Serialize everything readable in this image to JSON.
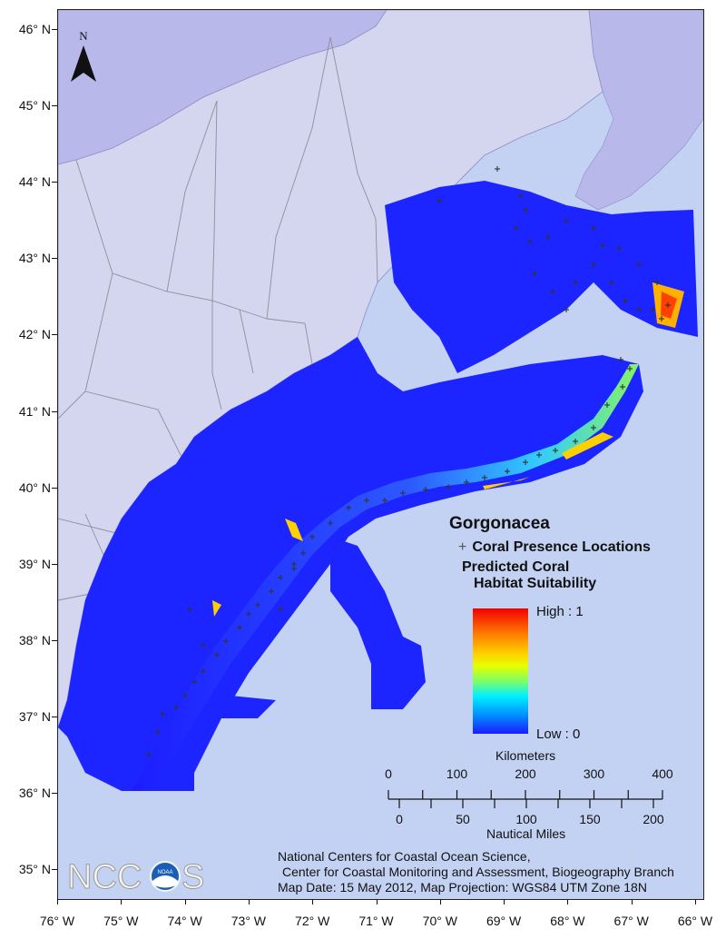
{
  "map": {
    "latitude_labels": [
      "46° N",
      "45° N",
      "44° N",
      "43° N",
      "42° N",
      "41° N",
      "40° N",
      "39° N",
      "38° N",
      "37° N",
      "36° N",
      "35° N"
    ],
    "longitude_labels": [
      "76° W",
      "75° W",
      "74° W",
      "73° W",
      "72° W",
      "71° W",
      "70° W",
      "69° W",
      "68° W",
      "67° W",
      "66° W"
    ],
    "north_label": "N",
    "colors": {
      "ocean": "#c3d2f2",
      "land": "#d4d5ef",
      "habitat_low": "#1c1cff",
      "habitat_high": "#f20000",
      "presence_marker": "#333333"
    }
  },
  "legend": {
    "title": "Gorgonacea",
    "presence_symbol": "+",
    "presence_label": "Coral Presence Locations",
    "prediction_label_line1": "Predicted Coral",
    "prediction_label_line2": "Habitat Suitability",
    "high_label": "High : 1",
    "low_label": "Low : 0"
  },
  "scale_bar": {
    "km_title": "Kilometers",
    "km_ticks": [
      "0",
      "100",
      "200",
      "300",
      "400"
    ],
    "nm_title": "Nautical Miles",
    "nm_ticks": [
      "0",
      "50",
      "100",
      "150",
      "200"
    ]
  },
  "credit": {
    "line1": "National Centers for Coastal Ocean Science,",
    "line2": "Center for Coastal Monitoring and Assessment, Biogeography Branch",
    "line3": "Map Date: 15 May 2012, Map Projection: WGS84 UTM Zone 18N"
  },
  "logo": {
    "text_left": "NCC",
    "text_right": "S",
    "emblem_text": "NOAA"
  }
}
